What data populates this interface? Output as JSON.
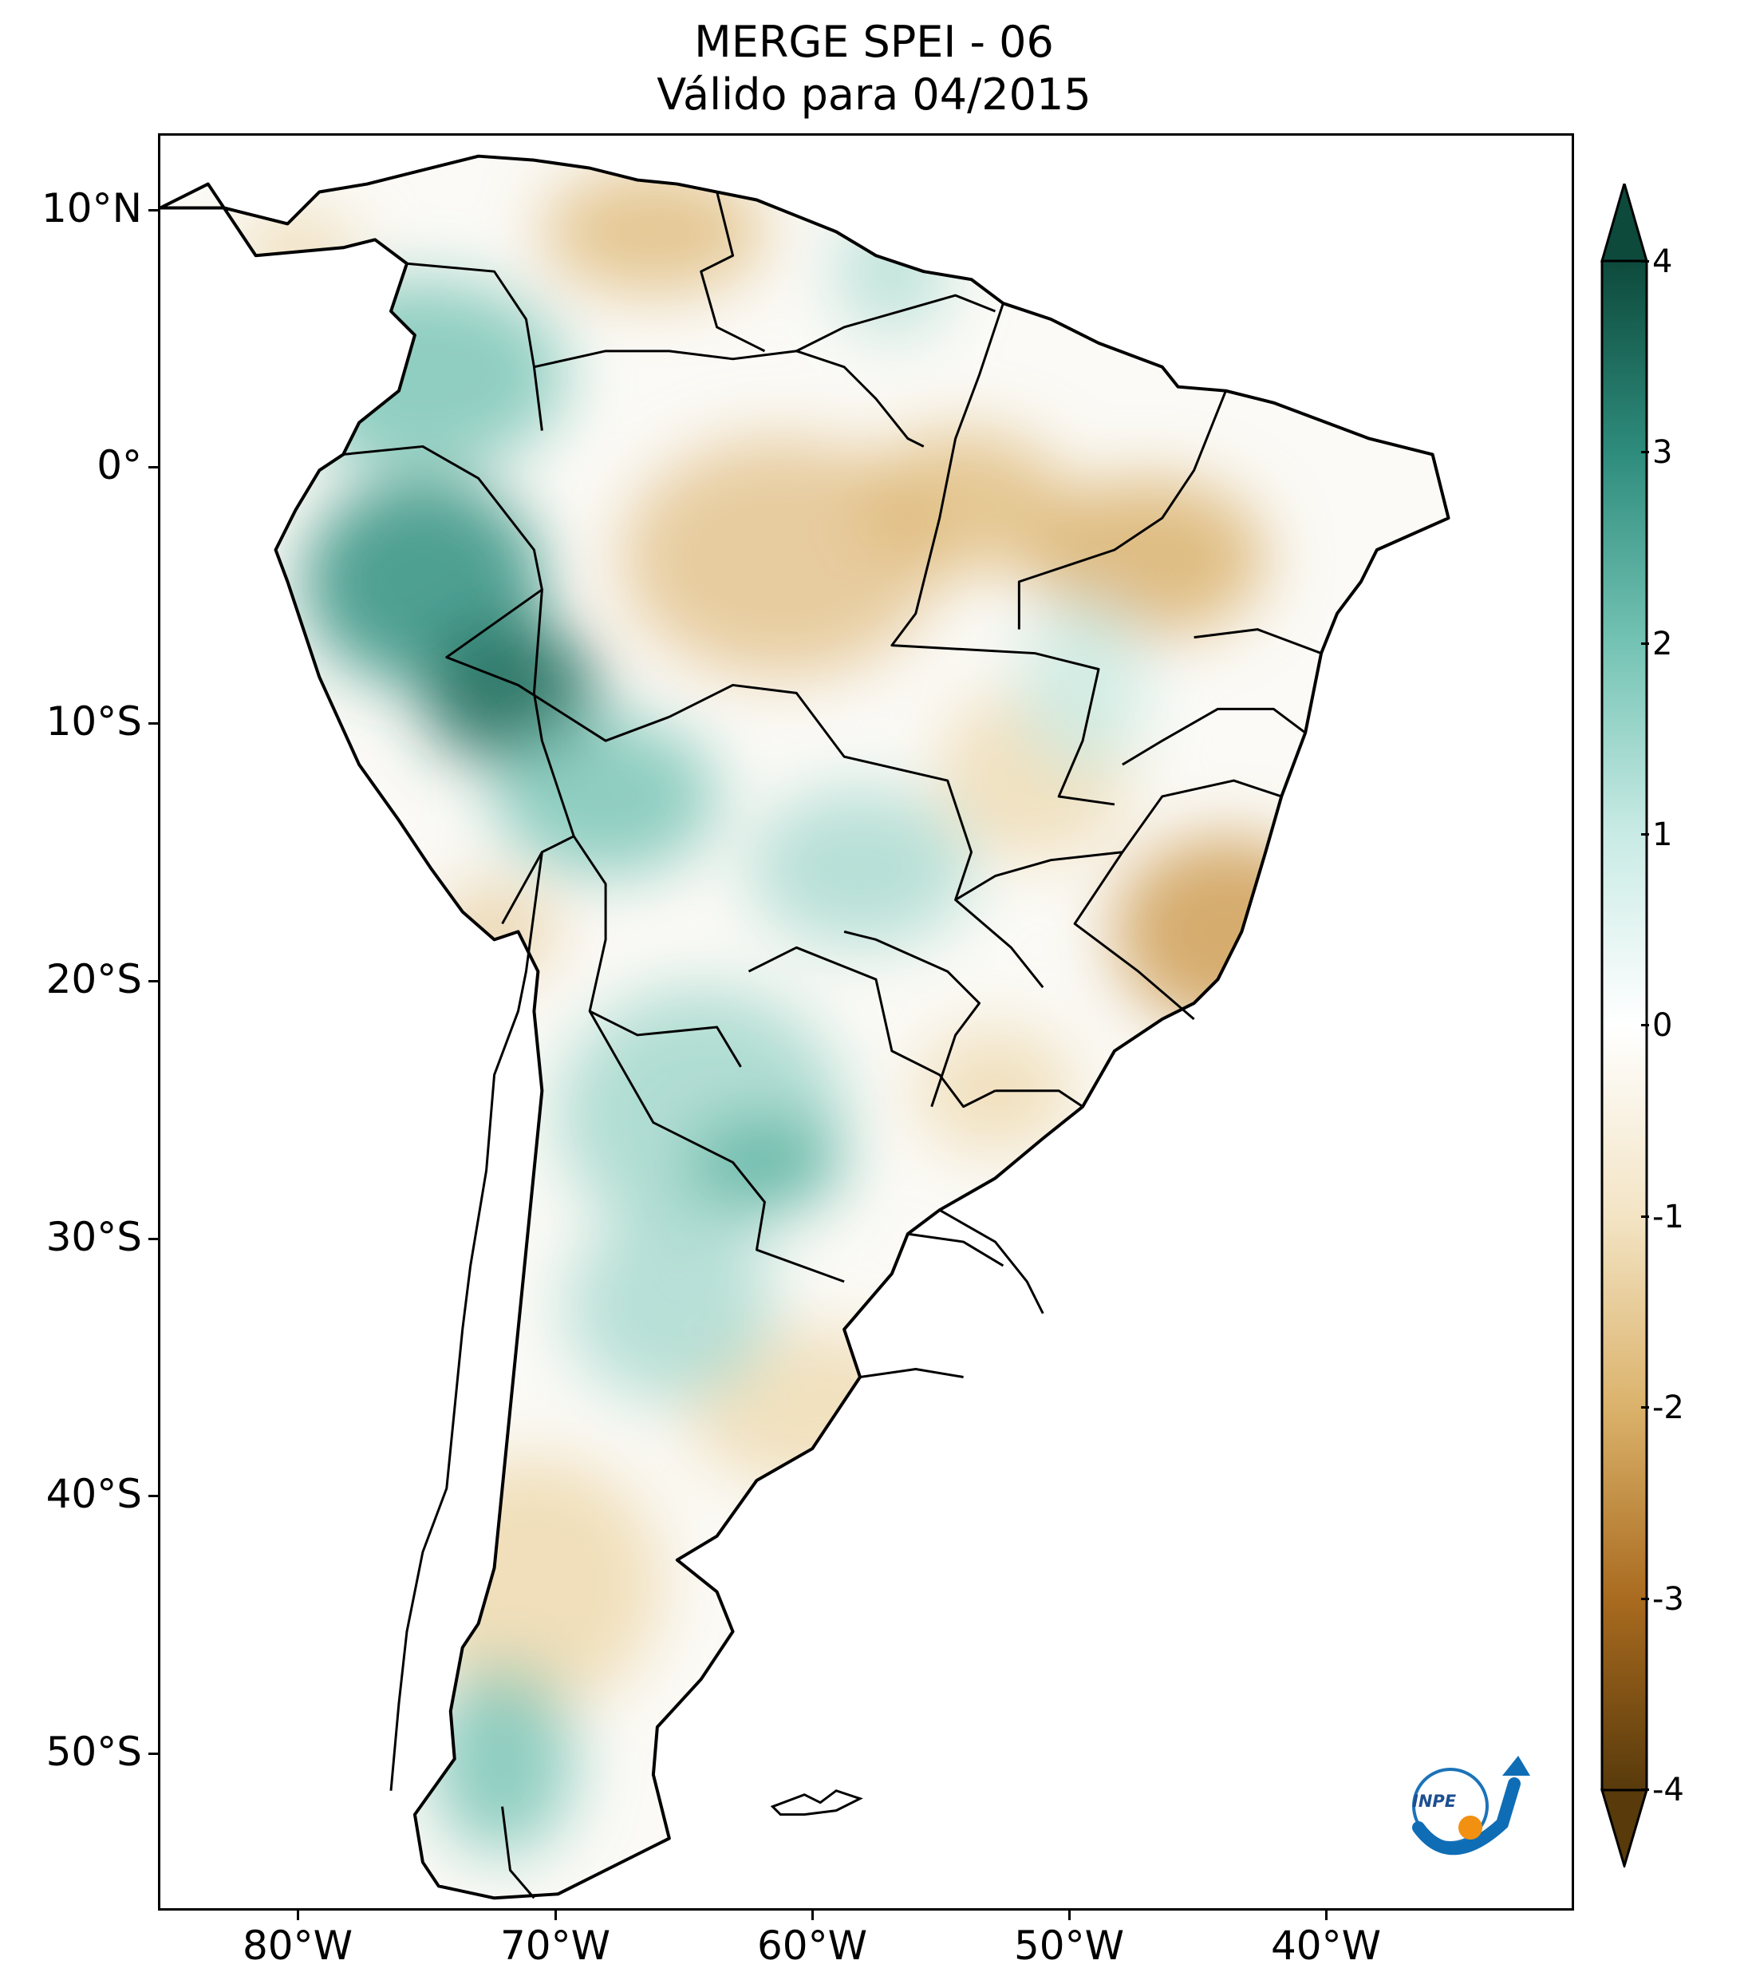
{
  "title": {
    "line1": "MERGE   SPEI - 06",
    "line2": "Válido para 04/2015"
  },
  "map": {
    "region": "South America",
    "latitude_labels": [
      "10°N",
      "0°",
      "10°S",
      "20°S",
      "30°S",
      "40°S",
      "50°S"
    ],
    "longitude_labels": [
      "80°W",
      "70°W",
      "60°W",
      "50°W",
      "40°W"
    ],
    "lat_range": [
      12.5,
      -56
    ],
    "lon_range": [
      -85,
      -30
    ]
  },
  "colorbar": {
    "ticks": [
      "4",
      "3",
      "2",
      "1",
      "0",
      "-1",
      "-2",
      "-3",
      "-4"
    ],
    "range": [
      -4,
      4
    ],
    "colors": {
      "wet_extreme": "#0d4a3c",
      "wet_strong": "#2e8c7c",
      "wet_moderate": "#74c3b4",
      "wet_mild": "#c9ebe5",
      "neutral": "#ffffff",
      "dry_mild": "#f3e4c4",
      "dry_moderate": "#dbb26b",
      "dry_strong": "#a96b1f",
      "dry_extreme": "#583a0b"
    },
    "extend": "both"
  },
  "logo": {
    "text": "INPE"
  }
}
